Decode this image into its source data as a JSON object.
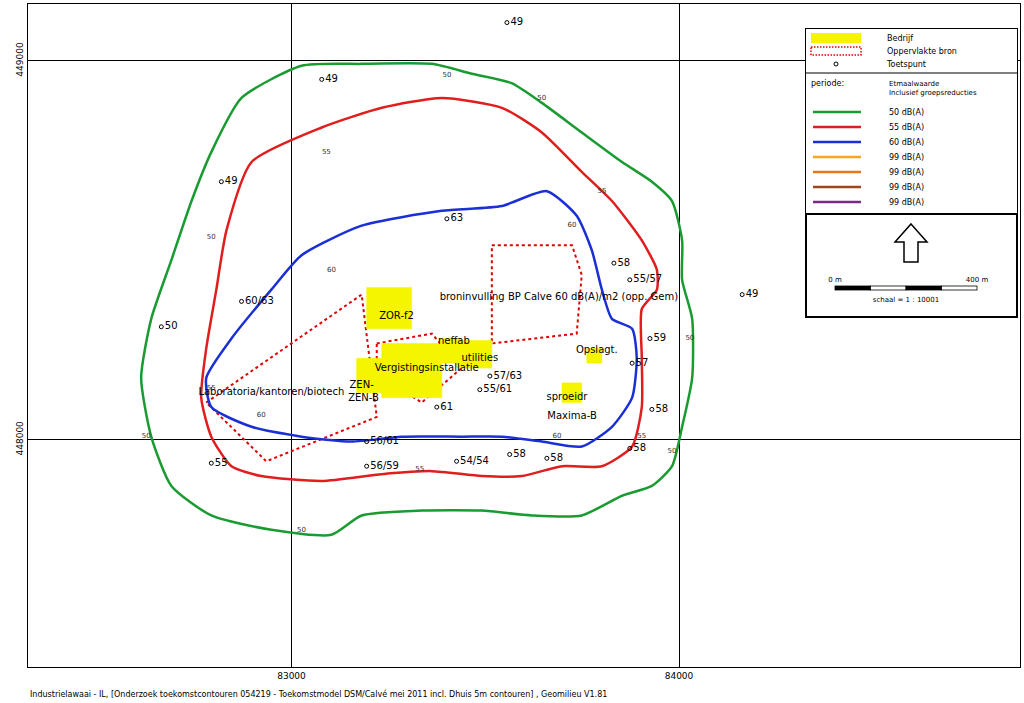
{
  "chart_data": {
    "type": "map",
    "xlim": [
      82320,
      84880
    ],
    "ylim": [
      447400,
      449150
    ],
    "xticks": [
      83000,
      84000
    ],
    "yticks": [
      448000,
      449000
    ],
    "grid": true,
    "contours": [
      {
        "name": "50 dB(A)",
        "color": "#1a9b32",
        "points": [
          [
            82871,
            448902
          ],
          [
            83026,
            448987
          ],
          [
            83181,
            448992
          ],
          [
            83362,
            448992
          ],
          [
            83465,
            448966
          ],
          [
            83568,
            448941
          ],
          [
            83646,
            448889
          ],
          [
            83749,
            448811
          ],
          [
            83853,
            448733
          ],
          [
            83930,
            448681
          ],
          [
            83982,
            448630
          ],
          [
            84008,
            448526
          ],
          [
            84008,
            448422
          ],
          [
            84034,
            448319
          ],
          [
            84034,
            448163
          ],
          [
            84008,
            448034
          ],
          [
            83982,
            447930
          ],
          [
            83930,
            447878
          ],
          [
            83853,
            447852
          ],
          [
            83749,
            447800
          ],
          [
            83620,
            447800
          ],
          [
            83491,
            447813
          ],
          [
            83336,
            447813
          ],
          [
            83181,
            447800
          ],
          [
            83103,
            447749
          ],
          [
            82948,
            447762
          ],
          [
            82793,
            447800
          ],
          [
            82690,
            447878
          ],
          [
            82638,
            448008
          ],
          [
            82612,
            448163
          ],
          [
            82638,
            448319
          ],
          [
            82690,
            448474
          ],
          [
            82742,
            448630
          ],
          [
            82793,
            448759
          ]
        ]
      },
      {
        "name": "55 dB(A)",
        "color": "#e01e1e",
        "points": [
          [
            82897,
            448733
          ],
          [
            83078,
            448824
          ],
          [
            83233,
            448876
          ],
          [
            83388,
            448902
          ],
          [
            83543,
            448876
          ],
          [
            83646,
            448811
          ],
          [
            83749,
            448707
          ],
          [
            83827,
            448630
          ],
          [
            83904,
            448526
          ],
          [
            83943,
            448448
          ],
          [
            83943,
            448396
          ],
          [
            83904,
            448345
          ],
          [
            83904,
            448215
          ],
          [
            83904,
            448086
          ],
          [
            83879,
            447982
          ],
          [
            83801,
            447930
          ],
          [
            83698,
            447930
          ],
          [
            83594,
            447904
          ],
          [
            83491,
            447904
          ],
          [
            83362,
            447917
          ],
          [
            83233,
            447909
          ],
          [
            83078,
            447891
          ],
          [
            82922,
            447904
          ],
          [
            82845,
            447930
          ],
          [
            82793,
            448008
          ],
          [
            82767,
            448111
          ],
          [
            82780,
            448241
          ],
          [
            82806,
            448396
          ],
          [
            82832,
            448552
          ]
        ]
      },
      {
        "name": "60 dB(A)",
        "color": "#1a2fd6",
        "points": [
          [
            83026,
            448487
          ],
          [
            83181,
            448565
          ],
          [
            83388,
            448604
          ],
          [
            83543,
            448617
          ],
          [
            83659,
            448656
          ],
          [
            83736,
            448591
          ],
          [
            83775,
            448500
          ],
          [
            83801,
            448396
          ],
          [
            83827,
            448319
          ],
          [
            83879,
            448293
          ],
          [
            83891,
            448215
          ],
          [
            83879,
            448111
          ],
          [
            83827,
            448034
          ],
          [
            83749,
            447982
          ],
          [
            83646,
            447995
          ],
          [
            83543,
            448008
          ],
          [
            83439,
            448008
          ],
          [
            83284,
            448008
          ],
          [
            83155,
            447995
          ],
          [
            83026,
            448008
          ],
          [
            82897,
            448034
          ],
          [
            82793,
            448086
          ],
          [
            82780,
            448163
          ],
          [
            82845,
            448267
          ],
          [
            82948,
            448396
          ]
        ]
      }
    ],
    "legend_levels": [
      {
        "name": "99 dB(A)",
        "color": "#f5a623"
      },
      {
        "name": "99 dB(A)",
        "color": "#e8761a"
      },
      {
        "name": "99 dB(A)",
        "color": "#a0461e"
      },
      {
        "name": "99 dB(A)",
        "color": "#7a2a82"
      }
    ],
    "buildings": {
      "name": "Bedrijf",
      "color": "#f5f500",
      "polygons": [
        [
          [
            83194,
            448402
          ],
          [
            83310,
            448402
          ],
          [
            83310,
            448293
          ],
          [
            83194,
            448293
          ]
        ],
        [
          [
            83233,
            448254
          ],
          [
            83388,
            448254
          ],
          [
            83388,
            448111
          ],
          [
            83233,
            448111
          ]
        ],
        [
          [
            83382,
            448267
          ],
          [
            83439,
            448267
          ],
          [
            83439,
            448202
          ],
          [
            83382,
            448202
          ]
        ],
        [
          [
            83426,
            448262
          ],
          [
            83517,
            448262
          ],
          [
            83517,
            448189
          ],
          [
            83426,
            448189
          ]
        ],
        [
          [
            83168,
            448215
          ],
          [
            83245,
            448215
          ],
          [
            83245,
            448124
          ],
          [
            83168,
            448124
          ]
        ],
        [
          [
            83762,
            448241
          ],
          [
            83801,
            448241
          ],
          [
            83801,
            448202
          ],
          [
            83762,
            448202
          ]
        ],
        [
          [
            83698,
            448150
          ],
          [
            83749,
            448150
          ],
          [
            83749,
            448098
          ],
          [
            83698,
            448098
          ]
        ]
      ]
    },
    "area_sources": {
      "name": "Oppervlakte bron",
      "color": "#e00000",
      "line_style": "dotted",
      "polygons": [
        [
          [
            82780,
            448098
          ],
          [
            83181,
            448383
          ],
          [
            83220,
            448060
          ],
          [
            82935,
            447943
          ]
        ],
        [
          [
            83517,
            448513
          ],
          [
            83724,
            448513
          ],
          [
            83749,
            448435
          ],
          [
            83736,
            448280
          ],
          [
            83517,
            448254
          ]
        ],
        [
          [
            83220,
            448254
          ],
          [
            83362,
            448280
          ],
          [
            83439,
            448189
          ],
          [
            83336,
            448098
          ],
          [
            83220,
            448176
          ]
        ]
      ]
    },
    "receptors": {
      "name": "Toetspunt",
      "marker": "circle",
      "points": [
        {
          "x": 83556,
          "y": 449101,
          "text": "49"
        },
        {
          "x": 83078,
          "y": 448951,
          "text": "49"
        },
        {
          "x": 82819,
          "y": 448681,
          "text": "49"
        },
        {
          "x": 84163,
          "y": 448383,
          "text": "49"
        },
        {
          "x": 82664,
          "y": 448298,
          "text": "50"
        },
        {
          "x": 82793,
          "y": 447938,
          "text": "55"
        },
        {
          "x": 82871,
          "y": 448365,
          "text": "60/63"
        },
        {
          "x": 83401,
          "y": 448583,
          "text": "63"
        },
        {
          "x": 83873,
          "y": 448422,
          "text": "55/57"
        },
        {
          "x": 83832,
          "y": 448466,
          "text": "58"
        },
        {
          "x": 83925,
          "y": 448267,
          "text": "59"
        },
        {
          "x": 83879,
          "y": 448202,
          "text": "57"
        },
        {
          "x": 83930,
          "y": 448080,
          "text": "58"
        },
        {
          "x": 83873,
          "y": 447977,
          "text": "58"
        },
        {
          "x": 83659,
          "y": 447951,
          "text": "58"
        },
        {
          "x": 83563,
          "y": 447961,
          "text": "58"
        },
        {
          "x": 83426,
          "y": 447943,
          "text": "54/54"
        },
        {
          "x": 83194,
          "y": 447930,
          "text": "56/59"
        },
        {
          "x": 83194,
          "y": 447995,
          "text": "56/61"
        },
        {
          "x": 83375,
          "y": 448086,
          "text": "61"
        },
        {
          "x": 83486,
          "y": 448132,
          "text": "55/61"
        },
        {
          "x": 83512,
          "y": 448168,
          "text": "57/63"
        }
      ]
    },
    "labels": [
      {
        "x": 83271,
        "y": 448324,
        "text": "ZOR-f2"
      },
      {
        "x": 83690,
        "y": 448376,
        "text": "broninvulling BP Calve 60 dB(A)/m2 (opp. Gem)"
      },
      {
        "x": 83419,
        "y": 448259,
        "text": "neffab"
      },
      {
        "x": 83486,
        "y": 448215,
        "text": "utilities"
      },
      {
        "x": 83349,
        "y": 448189,
        "text": "Vergistingsinstallatie"
      },
      {
        "x": 82948,
        "y": 448124,
        "text": "Laboratoria/kantoren/biotech"
      },
      {
        "x": 83181,
        "y": 448143,
        "text": "ZEN-"
      },
      {
        "x": 83186,
        "y": 448109,
        "text": "ZEN-B"
      },
      {
        "x": 83788,
        "y": 448236,
        "text": "Opslagt."
      },
      {
        "x": 83711,
        "y": 448111,
        "text": "sproeidr"
      },
      {
        "x": 83724,
        "y": 448060,
        "text": "Maxima-B"
      }
    ],
    "contour_labels": [
      {
        "x": 83401,
        "y": 448961,
        "text": "50"
      },
      {
        "x": 83646,
        "y": 448902,
        "text": "50"
      },
      {
        "x": 82793,
        "y": 448534,
        "text": "50"
      },
      {
        "x": 82625,
        "y": 448008,
        "text": "50"
      },
      {
        "x": 84028,
        "y": 448267,
        "text": "50"
      },
      {
        "x": 83982,
        "y": 447969,
        "text": "50"
      },
      {
        "x": 83026,
        "y": 447762,
        "text": "50"
      },
      {
        "x": 83090,
        "y": 448759,
        "text": "55"
      },
      {
        "x": 83801,
        "y": 448656,
        "text": "55"
      },
      {
        "x": 82793,
        "y": 448137,
        "text": "55"
      },
      {
        "x": 83331,
        "y": 447922,
        "text": "55"
      },
      {
        "x": 83904,
        "y": 448008,
        "text": "55"
      },
      {
        "x": 83103,
        "y": 448448,
        "text": "60"
      },
      {
        "x": 83724,
        "y": 448565,
        "text": "60"
      },
      {
        "x": 82922,
        "y": 448065,
        "text": "60"
      },
      {
        "x": 83685,
        "y": 448008,
        "text": "60"
      }
    ],
    "period": {
      "label": "periode:",
      "text": [
        "Etmaalwaarde",
        "Inclusief groepsreducties"
      ]
    },
    "scale": {
      "start": "0 m",
      "end": "400 m",
      "text": "schaal = 1 : 10001"
    },
    "footer": "Industrielawaai - IL, [Onderzoek toekomstcontouren 054219 - Toekomstmodel DSM/Calvé mei 2011 incl. Dhuis 5m contouren] , Geomilieu V1.81"
  }
}
